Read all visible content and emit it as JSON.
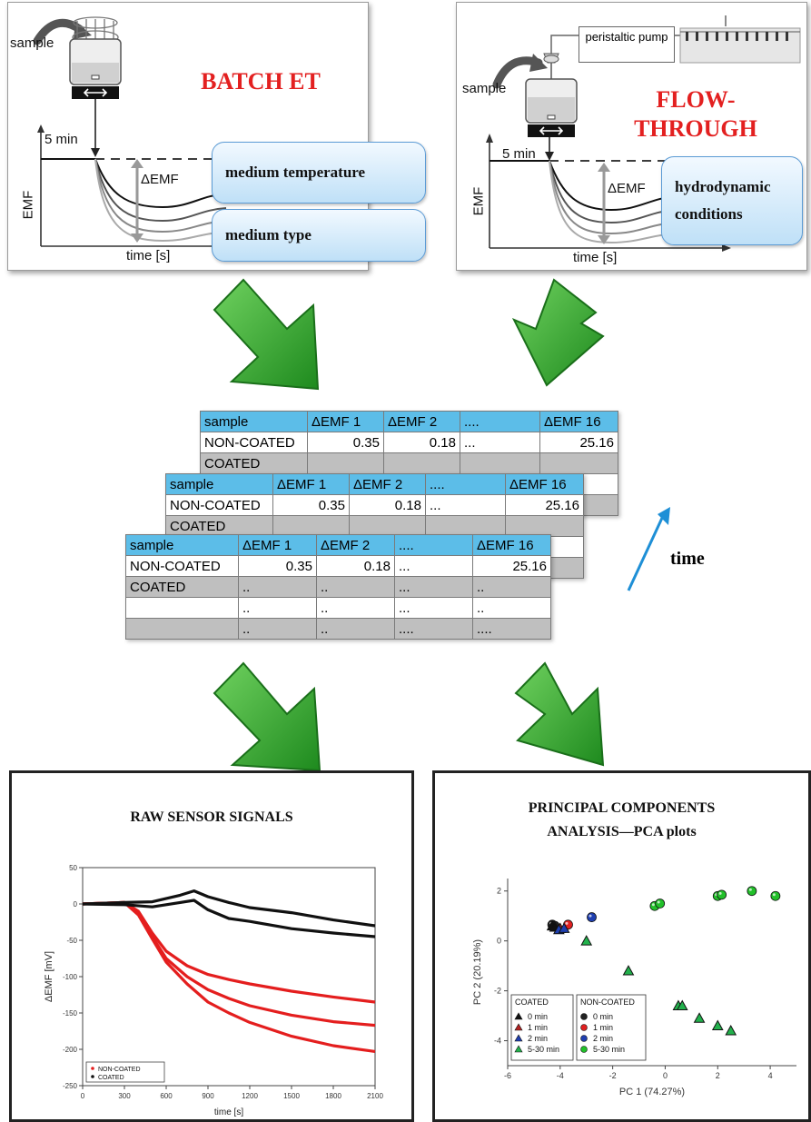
{
  "batch": {
    "title": "BATCH ET",
    "sample_label": "sample",
    "time_marker": "5 min",
    "delta_label": "ΔEMF",
    "y_label": "EMF",
    "x_label": "time [s]",
    "params": [
      "medium temperature",
      "medium type"
    ]
  },
  "flow": {
    "title_line1": "FLOW-",
    "title_line2": "THROUGH",
    "pump_label": "peristaltic pump",
    "sample_label": "sample",
    "time_marker": "5 min",
    "delta_label": "ΔEMF",
    "y_label": "EMF",
    "x_label": "time [s]",
    "param_line1": "hydrodynamic",
    "param_line2": "conditions"
  },
  "tables": {
    "headers": [
      "sample",
      "ΔEMF 1",
      "ΔEMF 2",
      "....",
      "ΔEMF 16"
    ],
    "row1": [
      "NON-COATED",
      "0.35",
      "0.18",
      "...",
      "25.16"
    ],
    "row2": [
      "COATED",
      "..",
      "..",
      "...",
      ".."
    ],
    "row3": [
      "",
      "..",
      "..",
      "...",
      ".."
    ],
    "row4": [
      "",
      "..",
      "..",
      "....",
      "...."
    ],
    "back_partial_label": "COATED",
    "time_label": "time"
  },
  "colors": {
    "arrow_green": "#2fa82f",
    "header_blue": "#5cbde8",
    "title_red": "#e32020",
    "time_arrow": "#1e8fd6"
  },
  "raw_chart": {
    "title": "RAW SENSOR SIGNALS",
    "chart_data": {
      "type": "line",
      "xlabel": "time [s]",
      "ylabel": "ΔEMF [mV]",
      "xlim": [
        0,
        2100
      ],
      "ylim": [
        -250,
        50
      ],
      "xticks": [
        "0",
        "300",
        "600",
        "900",
        "1200",
        "1500",
        "1800",
        "2100"
      ],
      "yticks": [
        "50",
        "0",
        "-50",
        "-100",
        "-150",
        "-200",
        "-250"
      ],
      "legend_position": "bottom-left",
      "series": [
        {
          "name": "NON-COATED",
          "color": "#e41e1e",
          "x": [
            0,
            300,
            400,
            500,
            600,
            750,
            900,
            1050,
            1200,
            1500,
            1800,
            2100
          ],
          "y": [
            0,
            2,
            -10,
            -40,
            -65,
            -85,
            -97,
            -104,
            -110,
            -120,
            -128,
            -135
          ]
        },
        {
          "name": "NON-COATED",
          "color": "#e41e1e",
          "x": [
            0,
            300,
            400,
            500,
            600,
            750,
            900,
            1050,
            1200,
            1500,
            1800,
            2100
          ],
          "y": [
            0,
            2,
            -12,
            -45,
            -75,
            -100,
            -118,
            -130,
            -140,
            -153,
            -162,
            -167
          ]
        },
        {
          "name": "NON-COATED",
          "color": "#e41e1e",
          "x": [
            0,
            300,
            400,
            500,
            600,
            750,
            900,
            1050,
            1200,
            1500,
            1800,
            2100
          ],
          "y": [
            0,
            2,
            -15,
            -48,
            -80,
            -110,
            -135,
            -150,
            -163,
            -182,
            -195,
            -203
          ]
        },
        {
          "name": "COATED",
          "color": "#111111",
          "x": [
            0,
            300,
            500,
            700,
            800,
            900,
            1050,
            1200,
            1500,
            1800,
            2100
          ],
          "y": [
            0,
            2,
            3,
            12,
            18,
            10,
            2,
            -5,
            -12,
            -22,
            -30
          ]
        },
        {
          "name": "COATED",
          "color": "#111111",
          "x": [
            0,
            300,
            500,
            700,
            800,
            900,
            1050,
            1200,
            1500,
            1800,
            2100
          ],
          "y": [
            0,
            -1,
            -4,
            2,
            5,
            -8,
            -20,
            -24,
            -34,
            -40,
            -45
          ]
        }
      ]
    },
    "legend": [
      "NON-COATED",
      "COATED"
    ]
  },
  "pca_chart": {
    "title_line1": "PRINCIPAL COMPONENTS",
    "title_line2": "ANALYSIS—PCA plots",
    "chart_data": {
      "type": "scatter",
      "xlabel": "PC 1 (74.27%)",
      "ylabel": "PC 2 (20.19%)",
      "xlim": [
        -6,
        5
      ],
      "ylim": [
        -5,
        2.5
      ],
      "xticks": [
        "-6",
        "-4",
        "-2",
        "0",
        "2",
        "4"
      ],
      "yticks": [
        "2",
        "0",
        "-2",
        "-4"
      ],
      "legend_position": "bottom-left",
      "series": [
        {
          "name": "0 min",
          "group": "COATED",
          "marker": "triangle",
          "color": "#111111",
          "x": [
            -4.3,
            -4.2
          ],
          "y": [
            0.6,
            0.55
          ]
        },
        {
          "name": "1 min",
          "group": "COATED",
          "marker": "triangle",
          "color": "#b22222",
          "x": [
            -4.0
          ],
          "y": [
            0.5
          ]
        },
        {
          "name": "2 min",
          "group": "COATED",
          "marker": "triangle",
          "color": "#1f3fb0",
          "x": [
            -4.05,
            -3.85
          ],
          "y": [
            0.45,
            0.5
          ]
        },
        {
          "name": "5-30 min",
          "group": "COATED",
          "marker": "triangle",
          "color": "#22b14c",
          "x": [
            -3.0,
            -1.4,
            0.5,
            0.65,
            1.3,
            2.0,
            2.5
          ],
          "y": [
            0.0,
            -1.2,
            -2.6,
            -2.6,
            -3.1,
            -3.4,
            -3.6
          ]
        },
        {
          "name": "0 min",
          "group": "NON-COATED",
          "marker": "circle",
          "color": "#222222",
          "x": [
            -4.3,
            -4.2
          ],
          "y": [
            0.65,
            0.6
          ]
        },
        {
          "name": "1 min",
          "group": "NON-COATED",
          "marker": "circle",
          "color": "#e02020",
          "x": [
            -3.7
          ],
          "y": [
            0.65
          ]
        },
        {
          "name": "2 min",
          "group": "NON-COATED",
          "marker": "circle",
          "color": "#1f3fb0",
          "x": [
            -2.8
          ],
          "y": [
            0.95
          ]
        },
        {
          "name": "5-30 min",
          "group": "NON-COATED",
          "marker": "circle",
          "color": "#22c02a",
          "x": [
            -0.4,
            -0.2,
            2.0,
            2.15,
            3.3,
            4.2
          ],
          "y": [
            1.4,
            1.5,
            1.8,
            1.85,
            2.0,
            1.8
          ]
        }
      ]
    },
    "legend_coated_title": "COATED",
    "legend_noncoated_title": "NON-COATED",
    "legend_items": [
      "0 min",
      "1 min",
      "2 min",
      "5-30 min"
    ]
  }
}
